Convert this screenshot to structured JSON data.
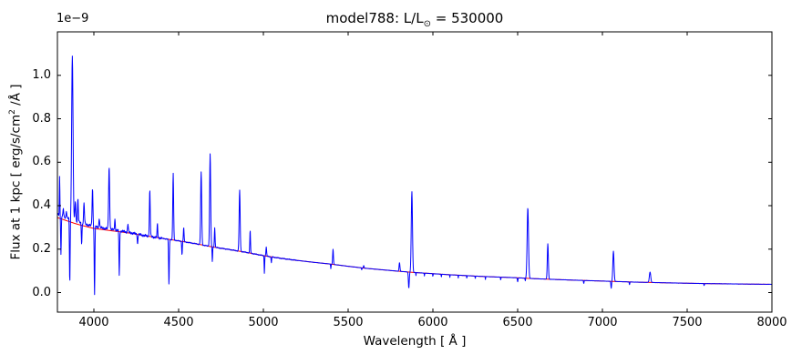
{
  "figure": {
    "title_prefix": "model788: L/L",
    "title_sub": "⊙",
    "title_suffix": " = 530000",
    "offset_text": "1e−9",
    "xlabel": "Wavelength [ Å ]",
    "ylabel_prefix": "Flux at 1 kpc [ erg/s/cm",
    "ylabel_sup": "2",
    "ylabel_suffix": " /Å ]"
  },
  "chart_data": {
    "type": "line",
    "title": "model788: L/L⊙ = 530000",
    "xlabel": "Wavelength [ Å ]",
    "ylabel": "Flux at 1 kpc [ erg/s/cm² /Å ]",
    "y_offset_factor": "1e−9",
    "xlim": [
      3785,
      8000
    ],
    "ylim": [
      -0.09,
      1.2
    ],
    "x_ticks": [
      "4000",
      "4500",
      "5000",
      "5500",
      "6000",
      "6500",
      "7000",
      "7500",
      "8000"
    ],
    "x_tick_values": [
      4000,
      4500,
      5000,
      5500,
      6000,
      6500,
      7000,
      7500,
      8000
    ],
    "y_ticks": [
      "0.0",
      "0.2",
      "0.4",
      "0.6",
      "0.8",
      "1.0"
    ],
    "y_tick_values": [
      0.0,
      0.2,
      0.4,
      0.6,
      0.8,
      1.0
    ],
    "grid": false,
    "legend": null,
    "series": [
      {
        "name": "model spectrum",
        "color": "#0000ff",
        "style": "solid"
      },
      {
        "name": "continuum",
        "color": "#ff0000",
        "style": "solid"
      }
    ],
    "continuum_points_format": "[wavelength_A, flux_1e-9]",
    "continuum_points": [
      [
        3785,
        0.345
      ],
      [
        3900,
        0.315
      ],
      [
        4000,
        0.295
      ],
      [
        4100,
        0.285
      ],
      [
        4200,
        0.275
      ],
      [
        4300,
        0.262
      ],
      [
        4400,
        0.25
      ],
      [
        4500,
        0.238
      ],
      [
        4600,
        0.225
      ],
      [
        4700,
        0.21
      ],
      [
        4800,
        0.198
      ],
      [
        4900,
        0.185
      ],
      [
        5000,
        0.17
      ],
      [
        5100,
        0.158
      ],
      [
        5200,
        0.148
      ],
      [
        5300,
        0.139
      ],
      [
        5400,
        0.131
      ],
      [
        5500,
        0.121
      ],
      [
        5600,
        0.112
      ],
      [
        5700,
        0.105
      ],
      [
        5800,
        0.098
      ],
      [
        5900,
        0.092
      ],
      [
        6000,
        0.087
      ],
      [
        6100,
        0.082
      ],
      [
        6200,
        0.078
      ],
      [
        6300,
        0.074
      ],
      [
        6400,
        0.071
      ],
      [
        6500,
        0.068
      ],
      [
        6600,
        0.064
      ],
      [
        6700,
        0.061
      ],
      [
        6800,
        0.058
      ],
      [
        7000,
        0.053
      ],
      [
        7200,
        0.048
      ],
      [
        7400,
        0.0445
      ],
      [
        7600,
        0.0415
      ],
      [
        7800,
        0.0395
      ],
      [
        8000,
        0.038
      ]
    ],
    "emission_lines_format": "[wavelength_A, peak_flux_1e-9, sigma_A]",
    "emission_lines": [
      [
        3798,
        0.52,
        1.5
      ],
      [
        3820,
        0.375,
        1.8
      ],
      [
        3838,
        0.365,
        1.8
      ],
      [
        3873,
        1.08,
        4
      ],
      [
        3891,
        0.41,
        2.5
      ],
      [
        3906,
        0.42,
        2.2
      ],
      [
        3942,
        0.4,
        2.5
      ],
      [
        3992,
        0.47,
        2.5
      ],
      [
        4032,
        0.335,
        2.2
      ],
      [
        4090,
        0.57,
        3
      ],
      [
        4124,
        0.335,
        2
      ],
      [
        4201,
        0.315,
        2
      ],
      [
        4330,
        0.47,
        2.5
      ],
      [
        4375,
        0.315,
        2
      ],
      [
        4468,
        0.55,
        2.5
      ],
      [
        4530,
        0.3,
        2
      ],
      [
        4633,
        0.555,
        3
      ],
      [
        4686,
        0.64,
        3
      ],
      [
        4713,
        0.3,
        2
      ],
      [
        4860,
        0.47,
        3
      ],
      [
        4922,
        0.285,
        2
      ],
      [
        5017,
        0.21,
        2
      ],
      [
        5411,
        0.2,
        2.2
      ],
      [
        5592,
        0.125,
        2
      ],
      [
        5803,
        0.138,
        2.5
      ],
      [
        5876,
        0.465,
        3.5
      ],
      [
        6560,
        0.39,
        4
      ],
      [
        6678,
        0.225,
        3
      ],
      [
        7065,
        0.19,
        3.5
      ],
      [
        7281,
        0.095,
        4
      ]
    ],
    "absorption_lines_format": "[wavelength_A, bottom_flux_1e-9, sigma_A]",
    "absorption_lines": [
      [
        3806,
        0.16,
        1.8
      ],
      [
        3858,
        0.03,
        2
      ],
      [
        3928,
        0.215,
        2
      ],
      [
        4004,
        -0.02,
        2
      ],
      [
        4150,
        0.075,
        2
      ],
      [
        4258,
        0.22,
        1.8
      ],
      [
        4443,
        0.035,
        2
      ],
      [
        4520,
        0.175,
        1.8
      ],
      [
        4699,
        0.14,
        1.5
      ],
      [
        5006,
        0.09,
        1.5
      ],
      [
        5047,
        0.135,
        1.5
      ],
      [
        5398,
        0.11,
        1.3
      ],
      [
        5580,
        0.105,
        1.5
      ],
      [
        5858,
        0.02,
        2.5
      ],
      [
        5900,
        0.078,
        1
      ],
      [
        5950,
        0.076,
        1
      ],
      [
        6000,
        0.073,
        1
      ],
      [
        6050,
        0.071,
        1
      ],
      [
        6100,
        0.069,
        1
      ],
      [
        6150,
        0.067,
        1
      ],
      [
        6200,
        0.065,
        1
      ],
      [
        6250,
        0.063,
        1
      ],
      [
        6310,
        0.06,
        1
      ],
      [
        6400,
        0.056,
        1
      ],
      [
        6500,
        0.05,
        1.8
      ],
      [
        6545,
        0.054,
        1.3
      ],
      [
        6890,
        0.042,
        1.5
      ],
      [
        7052,
        0.02,
        2
      ],
      [
        7160,
        0.036,
        1.5
      ],
      [
        7600,
        0.032,
        1.5
      ]
    ]
  }
}
